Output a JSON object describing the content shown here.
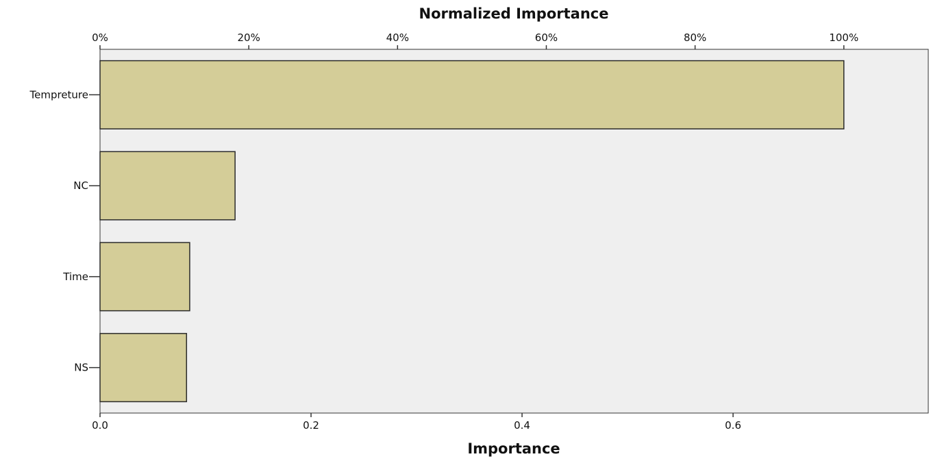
{
  "chart_data": {
    "type": "bar",
    "orientation": "horizontal",
    "top_axis_title": "Normalized Importance",
    "xlabel": "Importance",
    "ylabel": "",
    "categories": [
      "Tempreture",
      "NC",
      "Time",
      "NS"
    ],
    "values": [
      0.705,
      0.128,
      0.085,
      0.082
    ],
    "normalized_values": [
      100,
      18.1,
      12.0,
      11.7
    ],
    "xlim": [
      0,
      0.785
    ],
    "x_ticks": [
      "0.0",
      "0.2",
      "0.4",
      "0.6"
    ],
    "top_ticks": [
      "0%",
      "20%",
      "40%",
      "60%",
      "80%",
      "100%"
    ],
    "grid": false,
    "legend": "none",
    "colors": {
      "bar_fill": "#d4cd98",
      "bar_stroke": "#2a2a2a",
      "plot_bg": "#efefef",
      "axis": "#333333"
    }
  }
}
